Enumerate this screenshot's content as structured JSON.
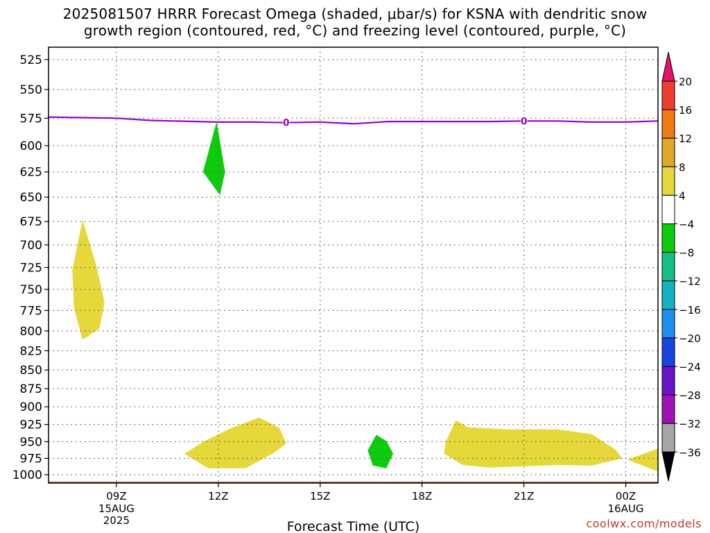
{
  "title_line1": "2025081507 HRRR Forecast Omega (shaded, μbar/s) for KSNA with dendritic snow",
  "title_line2": "growth region (contoured, red, °C) and freezing level (contoured, purple, °C)",
  "credit": "coolwx.com/models",
  "chart_data": {
    "type": "time-height cross-section",
    "xlabel": "Forecast Time (UTC)",
    "x_ticks": [
      {
        "hour": 9,
        "label": "09Z",
        "sub1": "15AUG",
        "sub2": "2025"
      },
      {
        "hour": 12,
        "label": "12Z",
        "sub1": "",
        "sub2": ""
      },
      {
        "hour": 15,
        "label": "15Z",
        "sub1": "",
        "sub2": ""
      },
      {
        "hour": 18,
        "label": "18Z",
        "sub1": "",
        "sub2": ""
      },
      {
        "hour": 21,
        "label": "21Z",
        "sub1": "",
        "sub2": ""
      },
      {
        "hour": 24,
        "label": "00Z",
        "sub1": "16AUG",
        "sub2": ""
      }
    ],
    "xlim_hours": [
      7,
      24.95
    ],
    "ylabel": "",
    "y_ticks": [
      525,
      550,
      575,
      600,
      625,
      650,
      675,
      700,
      725,
      750,
      775,
      800,
      825,
      850,
      875,
      900,
      925,
      950,
      975,
      1000
    ],
    "ylim_hPa": [
      515,
      1013
    ],
    "grid": true,
    "y_scale": "log-pressure",
    "colorbar": {
      "labels": [
        "20",
        "16",
        "12",
        "8",
        "4",
        "−4",
        "−8",
        "−12",
        "−16",
        "−20",
        "−24",
        "−28",
        "−32",
        "−36"
      ],
      "colors": [
        "#e8106e",
        "#f03c2c",
        "#ee7a14",
        "#e0a82a",
        "#e6d83a",
        "#ffffff",
        "#0ccc0c",
        "#14c088",
        "#12b2c2",
        "#1e90ee",
        "#1a44e0",
        "#6a14c8",
        "#a012b8",
        "#a6a6a6",
        "#000000"
      ]
    },
    "freezing_level": {
      "color": "#9900cc",
      "label": "0",
      "label_hours": [
        14.0,
        21.0
      ],
      "points": [
        [
          7,
          574
        ],
        [
          9,
          575
        ],
        [
          10,
          577
        ],
        [
          12,
          578.5
        ],
        [
          13,
          578.5
        ],
        [
          14,
          579
        ],
        [
          15,
          578.5
        ],
        [
          16,
          580
        ],
        [
          17,
          578
        ],
        [
          18,
          578
        ],
        [
          19,
          578
        ],
        [
          20,
          578
        ],
        [
          21,
          577.5
        ],
        [
          22,
          577.5
        ],
        [
          23,
          578.5
        ],
        [
          24,
          578.5
        ],
        [
          24.95,
          577.5
        ]
      ]
    },
    "omega_regions": [
      {
        "name": "upward-motion-12z",
        "value": "-4 to -8",
        "color": "#0ccc0c",
        "points": [
          [
            11.95,
            578
          ],
          [
            12.2,
            625
          ],
          [
            12.05,
            648
          ],
          [
            11.55,
            625
          ]
        ]
      },
      {
        "name": "downward-motion-08z",
        "value": "4 to 8",
        "color": "#e6d83a",
        "points": [
          [
            8.0,
            673
          ],
          [
            8.4,
            722
          ],
          [
            8.65,
            765
          ],
          [
            8.5,
            797
          ],
          [
            8.0,
            811
          ],
          [
            7.75,
            772
          ],
          [
            7.7,
            728
          ]
        ]
      },
      {
        "name": "downward-motion-13z-lowlevel",
        "value": "4 to 8",
        "color": "#e6d83a",
        "points": [
          [
            11.0,
            968
          ],
          [
            11.6,
            949
          ],
          [
            12.3,
            932
          ],
          [
            13.2,
            915
          ],
          [
            13.8,
            930
          ],
          [
            14.0,
            953
          ],
          [
            13.6,
            968
          ],
          [
            12.8,
            990
          ],
          [
            11.7,
            990
          ]
        ]
      },
      {
        "name": "upward-motion-1630z-lowlevel",
        "value": "-4 to -8",
        "color": "#0ccc0c",
        "points": [
          [
            16.65,
            940
          ],
          [
            16.95,
            949
          ],
          [
            17.15,
            968
          ],
          [
            16.95,
            990
          ],
          [
            16.55,
            986
          ],
          [
            16.4,
            963
          ]
        ]
      },
      {
        "name": "downward-motion-20z-23z-lowlevel",
        "value": "4 to 8",
        "color": "#e6d83a",
        "points": [
          [
            19.0,
            919
          ],
          [
            19.35,
            929
          ],
          [
            20.5,
            932
          ],
          [
            22.0,
            932
          ],
          [
            23.0,
            939
          ],
          [
            23.7,
            962
          ],
          [
            23.9,
            975
          ],
          [
            23.0,
            986
          ],
          [
            22.0,
            985
          ],
          [
            21.0,
            987
          ],
          [
            20.0,
            989
          ],
          [
            19.6,
            987
          ],
          [
            19.2,
            985
          ],
          [
            18.65,
            968
          ],
          [
            18.7,
            950
          ]
        ]
      },
      {
        "name": "downward-motion-edge-lowlevel",
        "value": "4 to 8",
        "color": "#e6d83a",
        "points": [
          [
            24.05,
            977
          ],
          [
            24.95,
            960
          ],
          [
            24.95,
            995
          ]
        ]
      }
    ],
    "ground_surface": {
      "color": "#a0522d",
      "pressure_hPa": 1011
    }
  }
}
